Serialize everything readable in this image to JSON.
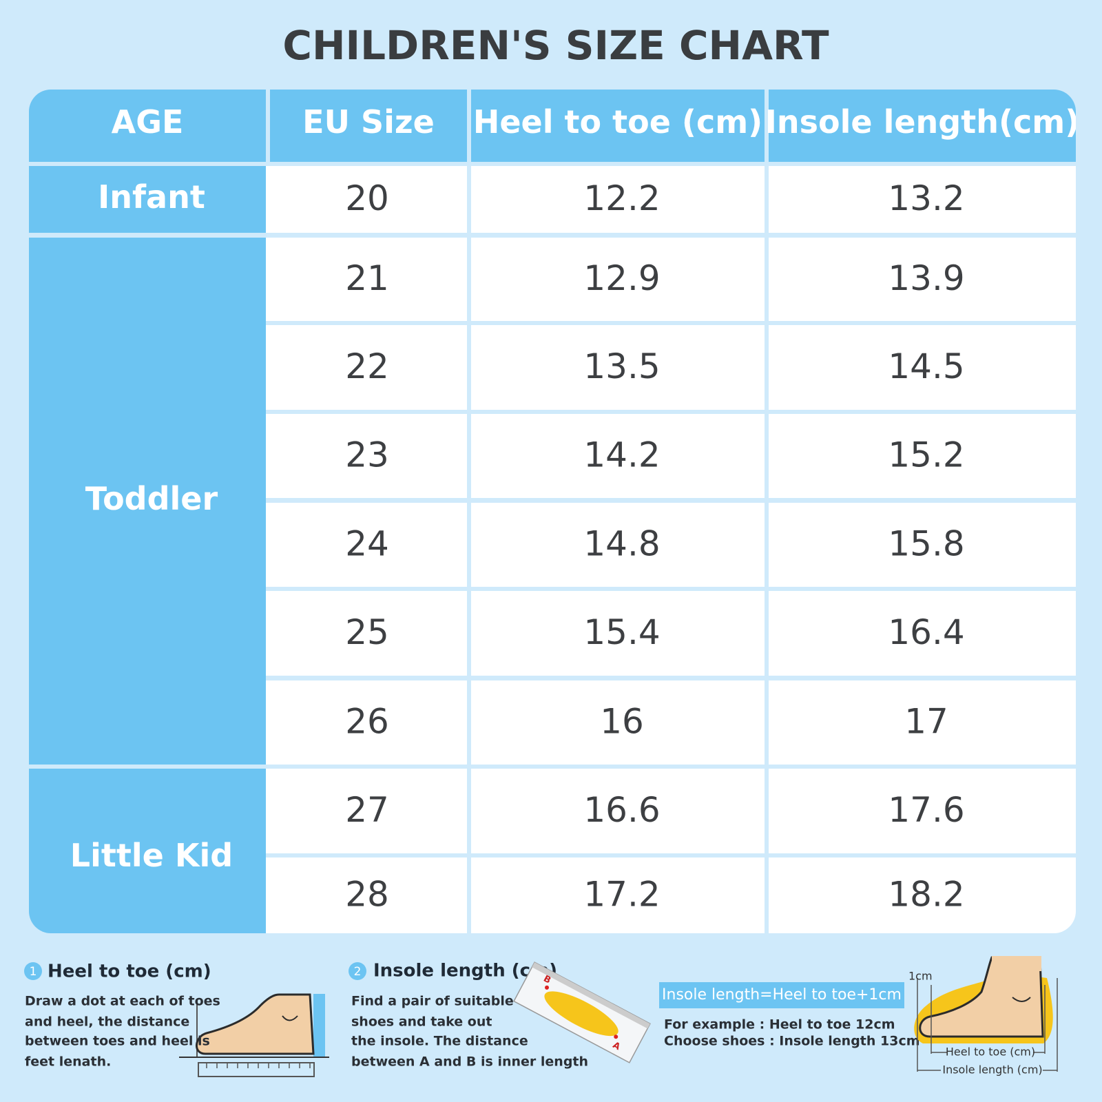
{
  "title": "CHILDREN'S SIZE CHART",
  "table": {
    "headers": [
      "AGE",
      "EU Size",
      "Heel to toe (cm)",
      "Insole length(cm)"
    ],
    "groups": [
      {
        "age": "Infant",
        "rows": [
          [
            20,
            12.2,
            13.2
          ]
        ]
      },
      {
        "age": "Toddler",
        "rows": [
          [
            21,
            12.9,
            13.9
          ],
          [
            22,
            13.5,
            14.5
          ],
          [
            23,
            14.2,
            15.2
          ],
          [
            24,
            14.8,
            15.8
          ],
          [
            25,
            15.4,
            16.4
          ],
          [
            26,
            16,
            17
          ]
        ]
      },
      {
        "age": "Little Kid",
        "rows": [
          [
            27,
            16.6,
            17.6
          ],
          [
            28,
            17.2,
            18.2
          ]
        ]
      }
    ]
  },
  "notes": [
    {
      "number": "1",
      "title": "Heel to toe (cm)",
      "lines": [
        "Draw a dot at each of toes",
        "and heel, the distance",
        "between toes and heel is",
        "feet lenath."
      ]
    },
    {
      "number": "2",
      "title": "Insole length (cm)",
      "lines": [
        "Find a pair of suitable",
        "shoes and take out",
        "the insole. The distance",
        "between A and B is inner length"
      ]
    }
  ],
  "insole_points": [
    "B",
    "A"
  ],
  "formula": "Insole length=Heel to toe+1cm",
  "example": [
    "For example : Heel to toe 12cm",
    "Choose shoes : Insole length 13cm"
  ],
  "diagram": {
    "gap": "1cm",
    "heel_to_toe": "Heel to toe (cm)",
    "insole": "Insole length (cm)"
  }
}
